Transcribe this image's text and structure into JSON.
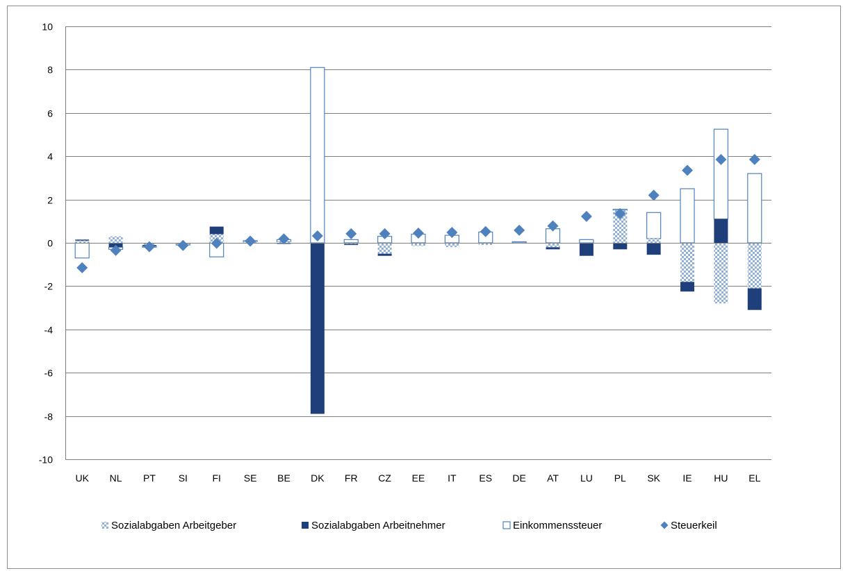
{
  "chart_data": {
    "type": "bar",
    "stacked": true,
    "categories": [
      "UK",
      "NL",
      "PT",
      "SI",
      "FI",
      "SE",
      "BE",
      "DK",
      "FR",
      "CZ",
      "EE",
      "IT",
      "ES",
      "DE",
      "AT",
      "LU",
      "PL",
      "SK",
      "IE",
      "HU",
      "EL"
    ],
    "ylim": [
      -10,
      10
    ],
    "yticks": [
      -10,
      -8,
      -6,
      -4,
      -2,
      0,
      2,
      4,
      6,
      8,
      10
    ],
    "grid": "horizontal",
    "legend_position": "bottom",
    "series": [
      {
        "name": "Sozialabgaben Arbeitgeber",
        "kind": "bar",
        "pattern": "checker",
        "values": [
          0.1,
          0.3,
          -0.1,
          -0.05,
          0.4,
          0.05,
          0.05,
          0.0,
          -0.05,
          -0.5,
          -0.15,
          -0.2,
          -0.1,
          0.0,
          -0.2,
          0.0,
          1.5,
          0.2,
          -1.8,
          -2.8,
          -2.1
        ]
      },
      {
        "name": "Sozialabgaben Arbeitnehmer",
        "kind": "bar",
        "pattern": "solid",
        "values": [
          0.05,
          -0.2,
          -0.05,
          0.0,
          0.35,
          0.0,
          -0.05,
          -7.9,
          -0.05,
          -0.1,
          0.0,
          0.0,
          0.0,
          0.0,
          -0.1,
          -0.6,
          -0.3,
          -0.55,
          -0.45,
          1.1,
          -1.0
        ]
      },
      {
        "name": "Einkommenssteuer",
        "kind": "bar",
        "pattern": "outline",
        "values": [
          -0.7,
          -0.1,
          -0.05,
          -0.05,
          -0.65,
          0.05,
          0.1,
          8.1,
          0.15,
          0.3,
          0.4,
          0.35,
          0.5,
          0.05,
          0.65,
          0.15,
          0.05,
          1.2,
          2.5,
          4.15,
          3.2
        ]
      },
      {
        "name": "Steuerkeil",
        "kind": "marker",
        "values": [
          -1.15,
          -0.35,
          -0.18,
          -0.12,
          -0.02,
          0.08,
          0.18,
          0.32,
          0.42,
          0.42,
          0.45,
          0.48,
          0.52,
          0.58,
          0.78,
          1.22,
          1.35,
          2.2,
          3.35,
          3.85,
          3.85
        ]
      }
    ],
    "colors": {
      "dark": "#1f3f7a",
      "light": "#4f81bd",
      "checker": "#9bbbe0",
      "grid": "#808080",
      "diamond": "#4f81bd"
    }
  }
}
